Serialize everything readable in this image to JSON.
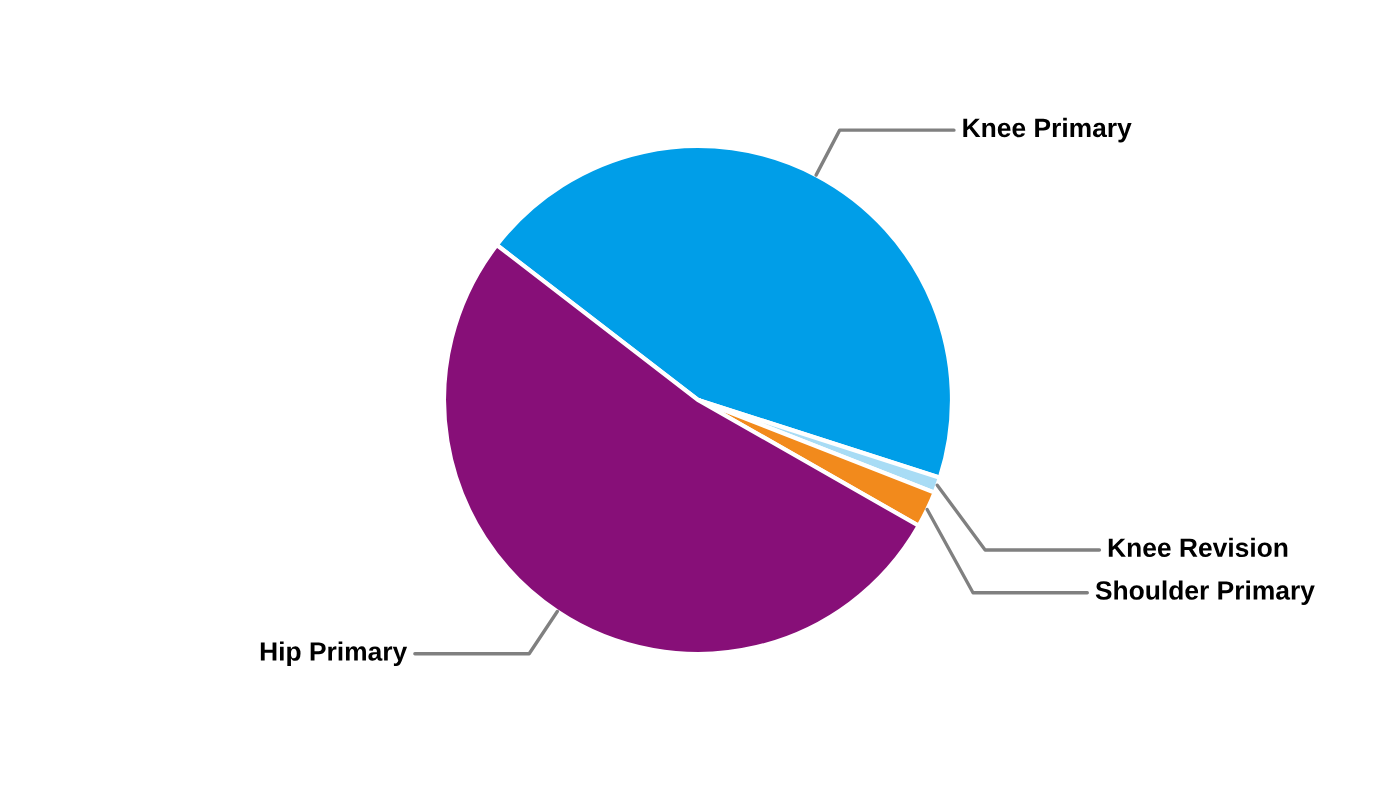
{
  "chart_data": {
    "type": "pie",
    "categories": [
      "Knee Primary",
      "Knee Revision",
      "Shoulder Primary",
      "Hip Primary"
    ],
    "values": [
      44.5,
      1,
      2.3,
      52.2
    ],
    "colors": [
      "#009ee8",
      "#a8dcf5",
      "#f28a1c",
      "#870f78"
    ]
  }
}
